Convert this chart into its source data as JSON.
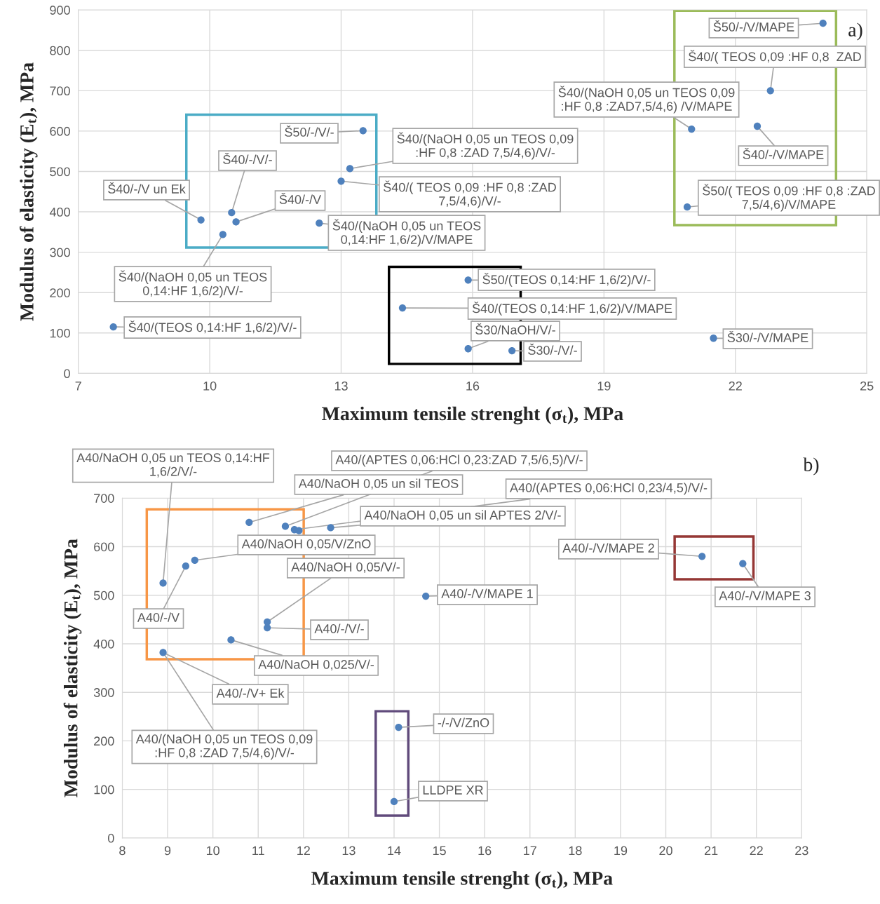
{
  "chart_data": [
    {
      "type": "scatter",
      "xlabel": "Maximum tensile strenght (σ$_{t}$), MPa",
      "ylabel": "Modulus of elasticity (E$_{t}$), MPa",
      "xlim": [
        7,
        25
      ],
      "ylim": [
        0,
        900
      ],
      "xticks": [
        7,
        10,
        13,
        16,
        19,
        22,
        25
      ],
      "yticks": [
        0,
        100,
        200,
        300,
        400,
        500,
        600,
        700,
        800,
        900
      ],
      "grid": true,
      "marker": "circle",
      "color": "#4f81bd",
      "x": [
        24.0,
        22.8,
        21.0,
        22.5,
        20.9,
        13.5,
        13.2,
        13.0,
        10.5,
        9.8,
        10.6,
        12.5,
        10.3,
        7.8,
        15.9,
        14.4,
        15.9,
        16.9,
        21.5
      ],
      "values": [
        867,
        700,
        605,
        612,
        412,
        601,
        507,
        476,
        398,
        380,
        375,
        372,
        344,
        115,
        231,
        162,
        61,
        56,
        87
      ],
      "annotations": [
        "a)",
        {
          "text": "Š50/-/V/MAPE",
          "x": 24.0,
          "y": 867
        },
        {
          "text": "Š40/( TEOS 0,09 :HF 0,8  ZAD",
          "x": 22.8,
          "y": 700
        },
        {
          "text": "Š40/(NaOH 0,05 un TEOS 0,09\n:HF 0,8 :ZAD7,5/4,6) /V/MAPE",
          "x": 21.0,
          "y": 605
        },
        {
          "text": "Š40/-/V/MAPE",
          "x": 22.5,
          "y": 612
        },
        {
          "text": "Š50/( TEOS 0,09 :HF 0,8 :ZAD\n7,5/4,6)/V/MAPE",
          "x": 20.9,
          "y": 412
        },
        {
          "text": "Š50/-/V/-",
          "x": 13.5,
          "y": 601
        },
        {
          "text": "Š40/(NaOH 0,05 un TEOS 0,09\n:HF 0,8 :ZAD 7,5/4,6)/V/-",
          "x": 13.2,
          "y": 507
        },
        {
          "text": "Š40/( TEOS 0,09 :HF 0,8 :ZAD\n7,5/4,6)/V/-",
          "x": 13.0,
          "y": 476
        },
        {
          "text": "Š40/-/V/-",
          "x": 10.5,
          "y": 398
        },
        {
          "text": "Š40/-/V un Ek",
          "x": 9.8,
          "y": 380
        },
        {
          "text": "Š40/-/V",
          "x": 10.6,
          "y": 375
        },
        {
          "text": "Š40/(NaOH 0,05 un TEOS\n0,14:HF 1,6/2)/V/MAPE",
          "x": 12.5,
          "y": 372
        },
        {
          "text": "Š40/(NaOH 0,05 un TEOS\n0,14:HF 1,6/2)/V/-",
          "x": 10.3,
          "y": 344
        },
        {
          "text": "Š40/(TEOS 0,14:HF 1,6/2)/V/-",
          "x": 7.8,
          "y": 115
        },
        {
          "text": "Š50/(TEOS 0,14:HF 1,6/2)/V/-",
          "x": 15.9,
          "y": 231
        },
        {
          "text": "Š40/(TEOS 0,14:HF 1,6/2)/V/MAPE",
          "x": 14.4,
          "y": 162
        },
        {
          "text": "Š30/NaOH/V/-",
          "x": 15.9,
          "y": 61
        },
        {
          "text": "Š30/-/V/-",
          "x": 16.9,
          "y": 56
        },
        {
          "text": "Š30/-/V/MAPE",
          "x": 21.5,
          "y": 87
        }
      ]
    },
    {
      "type": "scatter",
      "xlabel": "Maximum tensile strenght (σ$_{t}$), MPa",
      "ylabel": "Modulus of elasticity (E$_{t}$), MPa",
      "xlim": [
        8,
        23
      ],
      "ylim": [
        0,
        700
      ],
      "xticks": [
        8,
        9,
        10,
        11,
        12,
        13,
        14,
        15,
        16,
        17,
        18,
        19,
        20,
        21,
        22,
        23
      ],
      "yticks": [
        0,
        100,
        200,
        300,
        400,
        500,
        600,
        700
      ],
      "grid": true,
      "marker": "circle",
      "color": "#4f81bd",
      "x": [
        8.9,
        9.4,
        9.6,
        8.9,
        10.8,
        11.6,
        11.8,
        11.9,
        12.6,
        11.2,
        11.2,
        10.4,
        14.7,
        20.8,
        21.7,
        14.1,
        14.0
      ],
      "values": [
        525,
        560,
        572,
        382,
        650,
        642,
        635,
        633,
        639,
        445,
        433,
        408,
        498,
        580,
        565,
        228,
        75
      ],
      "annotations": [
        "b)",
        {
          "text": "A40/NaOH 0,05 un TEOS 0,14:HF\n1,6/2/V/-",
          "x": 8.9,
          "y": 525
        },
        {
          "text": "A40/(APTES 0,06:HCl 0,23:ZAD 7,5/6,5)/V/-",
          "x": 11.6,
          "y": 642
        },
        {
          "text": "A40/NaOH 0,05 un sil TEOS",
          "x": 10.8,
          "y": 650
        },
        {
          "text": "A40/(APTES 0,06:HCl 0,23/4,5)/V/-",
          "x": 11.8,
          "y": 635
        },
        {
          "text": "A40/NaOH 0,05 un sil APTES 2/V/-",
          "x": 12.6,
          "y": 639
        },
        {
          "text": "A40/NaOH 0,05/V/ZnO",
          "x": 9.6,
          "y": 572
        },
        {
          "text": "A40/NaOH 0,05/V/-",
          "x": 11.2,
          "y": 445
        },
        {
          "text": "A40/-/V/-",
          "x": 11.2,
          "y": 433
        },
        {
          "text": "A40/NaOH 0,025/V/-",
          "x": 10.4,
          "y": 408
        },
        {
          "text": "A40/-/V",
          "x": 9.4,
          "y": 560
        },
        {
          "text": "A40/-/V+ Ek",
          "x": 8.9,
          "y": 382
        },
        {
          "text": "A40/(NaOH 0,05 un TEOS 0,09\n:HF 0,8 :ZAD 7,5/4,6)/V/-",
          "x": 8.9,
          "y": 382
        },
        {
          "text": "A40/-/V/MAPE 1",
          "x": 14.7,
          "y": 498
        },
        {
          "text": "A40/-/V/MAPE 2",
          "x": 20.8,
          "y": 580
        },
        {
          "text": "A40/-/V/MAPE 3",
          "x": 21.7,
          "y": 565
        },
        {
          "text": "-/-/V/ZnO",
          "x": 14.1,
          "y": 228
        },
        {
          "text": "LLDPE XR",
          "x": 14.0,
          "y": 75
        }
      ]
    }
  ]
}
